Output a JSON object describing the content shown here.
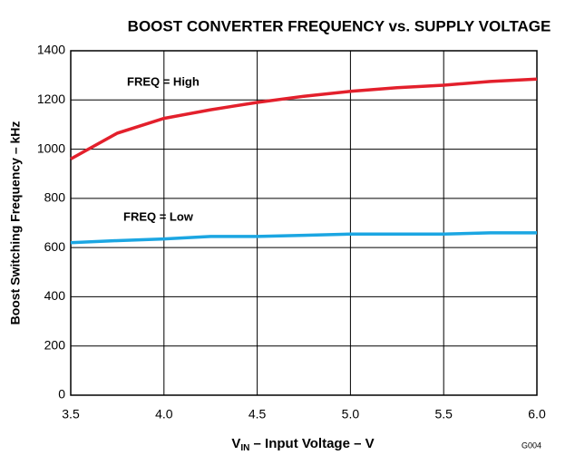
{
  "chart_data": {
    "type": "line",
    "title": "BOOST CONVERTER FREQUENCY vs. SUPPLY VOLTAGE",
    "x_label": {
      "main": "V",
      "sub": "IN",
      "rest": " – Input Voltage – V"
    },
    "y_label": "Boost Switching Frequency – kHz",
    "code": "G004",
    "x": [
      3.5,
      3.75,
      4.0,
      4.25,
      4.5,
      4.75,
      5.0,
      5.25,
      5.5,
      5.75,
      6.0
    ],
    "series": [
      {
        "name": "FREQ = High",
        "color": "#e3202c",
        "values": [
          960,
          1065,
          1125,
          1160,
          1190,
          1215,
          1235,
          1250,
          1260,
          1275,
          1285
        ]
      },
      {
        "name": "FREQ = Low",
        "color": "#1ba6e2",
        "values": [
          620,
          628,
          635,
          645,
          645,
          650,
          655,
          655,
          655,
          660,
          660
        ]
      }
    ],
    "xlim": [
      3.5,
      6.0
    ],
    "xticks": [
      3.5,
      {
        "value": 4,
        "label": "4.0"
      },
      4.5,
      {
        "value": 5,
        "label": "5.0"
      },
      5.5,
      {
        "value": 6,
        "label": "6.0"
      }
    ],
    "ylim": [
      0,
      1400
    ],
    "yticks": [
      0,
      200,
      400,
      600,
      800,
      1000,
      1200,
      1400
    ],
    "grid": true
  }
}
